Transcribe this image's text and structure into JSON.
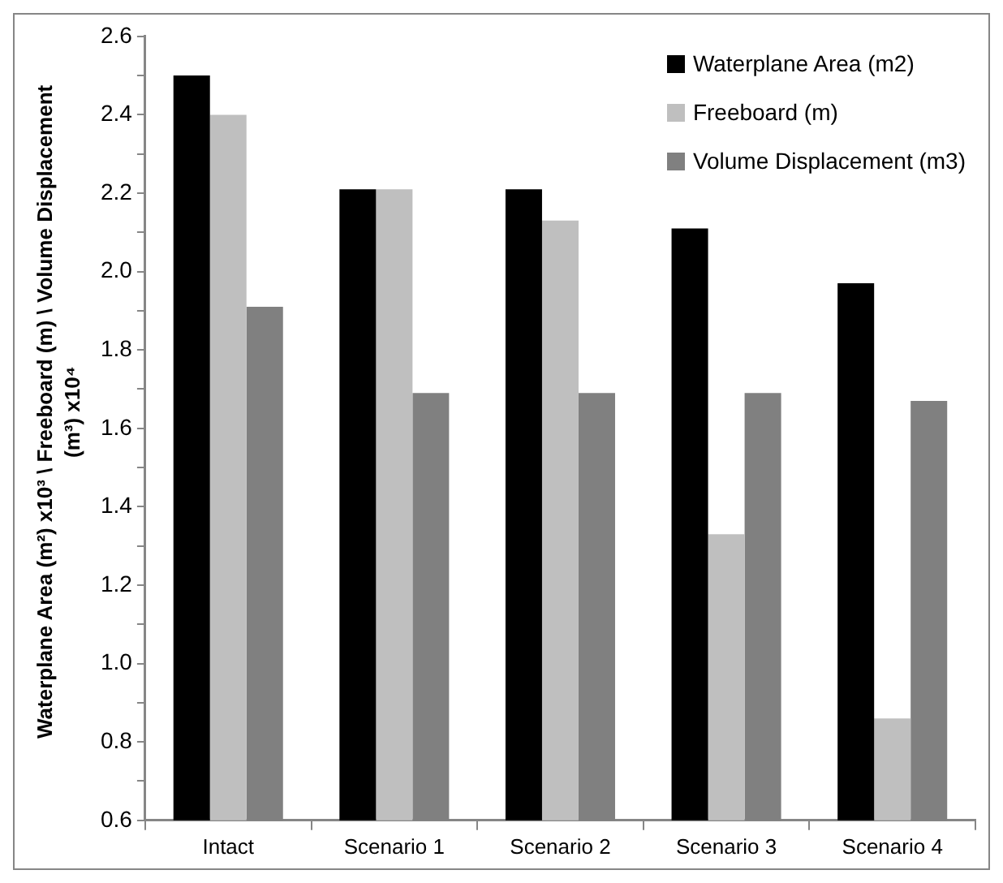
{
  "chart_data": {
    "type": "bar",
    "ylabel": "Waterplane Area (m²) x10³ \\ Freeboard (m) \\ Volume Displacement (m³)  x10⁴",
    "categories": [
      "Intact",
      "Scenario 1",
      "Scenario 2",
      "Scenario 3",
      "Scenario 4"
    ],
    "series": [
      {
        "name": "Waterplane Area (m2)",
        "color": "#000000",
        "values": [
          2.5,
          2.21,
          2.21,
          2.11,
          1.97
        ]
      },
      {
        "name": "Freeboard (m)",
        "color": "#bfbfbf",
        "values": [
          2.4,
          2.21,
          2.13,
          1.33,
          0.86
        ]
      },
      {
        "name": "Volume Displacement (m3)",
        "color": "#808080",
        "values": [
          1.91,
          1.69,
          1.69,
          1.69,
          1.67
        ]
      }
    ],
    "ylim": [
      0.6,
      2.6
    ],
    "yticks": [
      0.6,
      {
        "value": 0.7,
        "label": null
      },
      0.8,
      {
        "value": 0.9,
        "label": null
      },
      {
        "value": 1.0,
        "label": "1.0"
      },
      {
        "value": 1.1,
        "label": null
      },
      1.2,
      {
        "value": 1.3,
        "label": null
      },
      1.4,
      {
        "value": 1.5,
        "label": null
      },
      1.6,
      {
        "value": 1.7,
        "label": null
      },
      1.8,
      {
        "value": 1.9,
        "label": null
      },
      {
        "value": 2.0,
        "label": "2.0"
      },
      {
        "value": 2.1,
        "label": null
      },
      2.2,
      {
        "value": 2.3,
        "label": null
      },
      2.4,
      {
        "value": 2.5,
        "label": null
      },
      2.6
    ],
    "grid": false,
    "legend": "top right"
  }
}
